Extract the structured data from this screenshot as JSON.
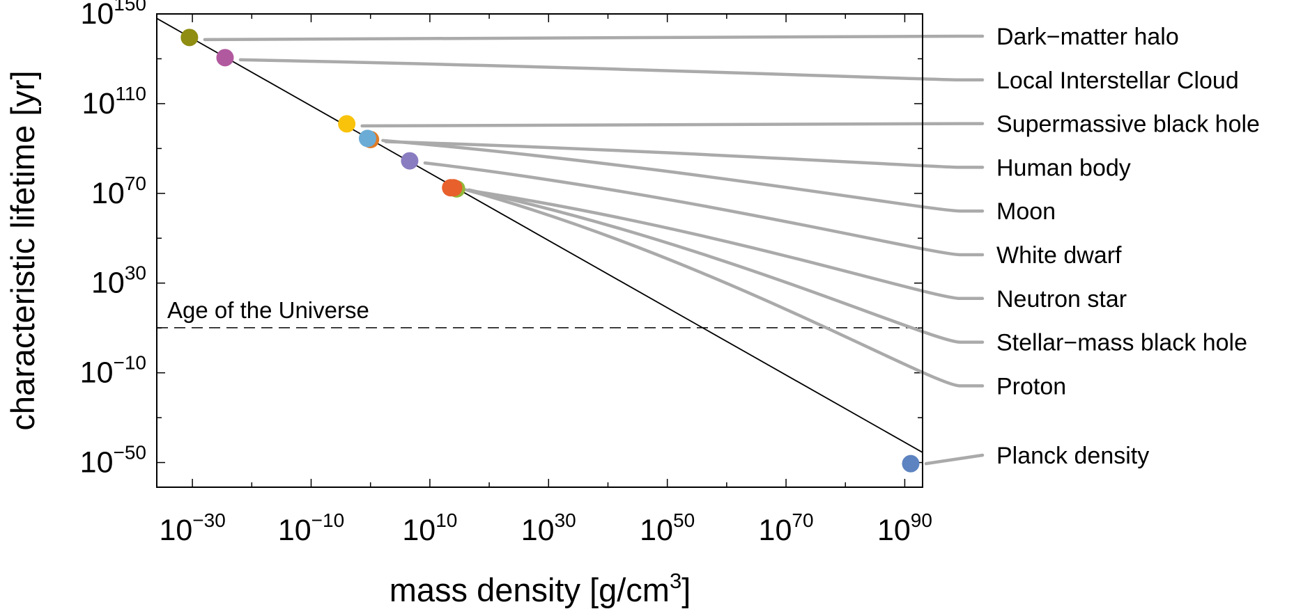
{
  "chart_data": {
    "type": "scatter",
    "title": "",
    "xlabel": "mass density [g/cm",
    "xlabel_superscript": "3",
    "xlabel_suffix": "]",
    "ylabel": "characteristic lifetime [yr]",
    "x_scale": "log",
    "y_scale": "log",
    "xlim_log10": [
      -36,
      93
    ],
    "ylim_log10": [
      -61,
      150
    ],
    "x_ticks_log10": [
      -30,
      -10,
      10,
      30,
      50,
      70,
      90
    ],
    "y_ticks_log10": [
      -50,
      -10,
      30,
      70,
      110,
      150
    ],
    "x_tick_labels": [
      {
        "base": "10",
        "exp": "−30"
      },
      {
        "base": "10",
        "exp": "−10"
      },
      {
        "base": "10",
        "exp": "10"
      },
      {
        "base": "10",
        "exp": "30"
      },
      {
        "base": "10",
        "exp": "50"
      },
      {
        "base": "10",
        "exp": "70"
      },
      {
        "base": "10",
        "exp": "90"
      }
    ],
    "y_tick_labels": [
      {
        "base": "10",
        "exp": "−50"
      },
      {
        "base": "10",
        "exp": "−10"
      },
      {
        "base": "10",
        "exp": "30"
      },
      {
        "base": "10",
        "exp": "70"
      },
      {
        "base": "10",
        "exp": "110"
      },
      {
        "base": "10",
        "exp": "150"
      }
    ],
    "trend_line": {
      "slope": -1.5,
      "intercept_log10": 94,
      "color": "#000000"
    },
    "reference_line": {
      "label": "Age of the Universe",
      "y_log10": 10.1,
      "style": "dashed"
    },
    "leader_color": "#aaaaaa",
    "points": [
      {
        "label": "Dark−matter halo",
        "x_log10": -30.5,
        "y_log10": 139.5,
        "color": "#8f8d12"
      },
      {
        "label": "Local Interstellar Cloud",
        "x_log10": -24.5,
        "y_log10": 130.5,
        "color": "#b1599f"
      },
      {
        "label": "Supermassive black hole",
        "x_log10": -4.0,
        "y_log10": 101.0,
        "color": "#f9c30b"
      },
      {
        "label": "Human body",
        "x_log10": 0.0,
        "y_log10": 94.0,
        "color": "#e07b26"
      },
      {
        "label": "Moon",
        "x_log10": -0.5,
        "y_log10": 94.5,
        "color": "#6bacd6"
      },
      {
        "label": "White dwarf",
        "x_log10": 6.6,
        "y_log10": 84.5,
        "color": "#8a7cc0"
      },
      {
        "label": "Neutron star",
        "x_log10": 14.5,
        "y_log10": 72.0,
        "color": "#92b83a"
      },
      {
        "label": "Stellar−mass black hole",
        "x_log10": 14.0,
        "y_log10": 72.5,
        "color": "#e8602c"
      },
      {
        "label": "Proton",
        "x_log10": 13.5,
        "y_log10": 72.5,
        "color": "#e8602c"
      },
      {
        "label": "Planck density",
        "x_log10": 91.0,
        "y_log10": -50.5,
        "color": "#5d83c0"
      }
    ]
  }
}
